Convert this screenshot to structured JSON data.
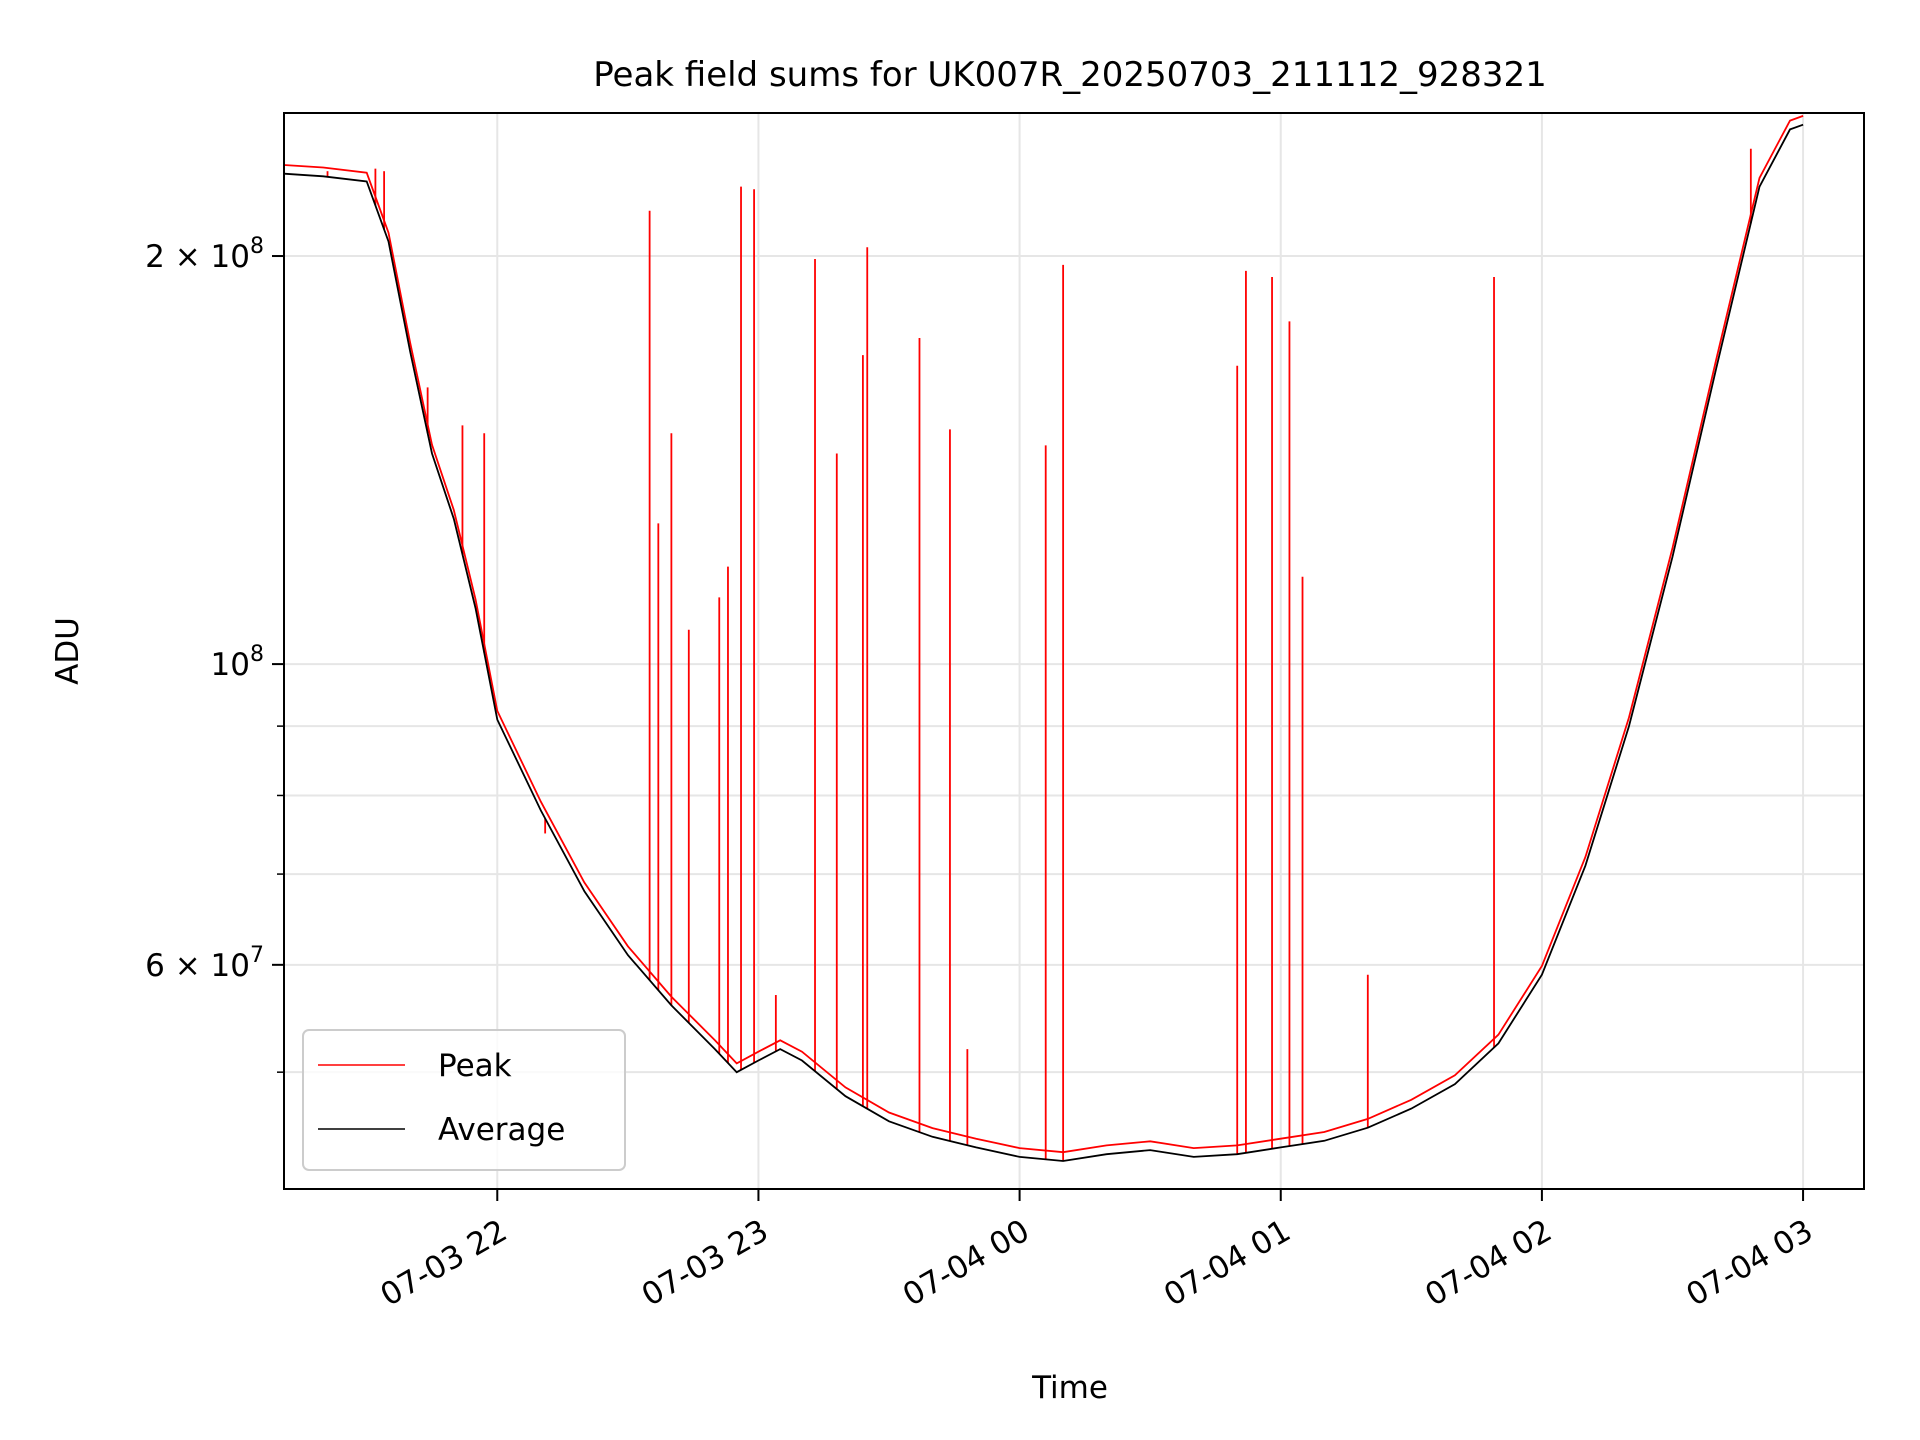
{
  "chart_data": {
    "type": "line",
    "title": "Peak field sums for UK007R_20250703_211112_928321",
    "xlabel": "Time",
    "ylabel": "ADU",
    "y_scale": "log",
    "ylim": [
      41000000,
      255000000
    ],
    "xlim": [
      "2025-07-03 21:11",
      "2025-07-04 03:14"
    ],
    "grid": true,
    "legend_position": "lower-left",
    "x_ticks": [
      {
        "value": "2025-07-03 22:00",
        "label": "07-03 22"
      },
      {
        "value": "2025-07-03 23:00",
        "label": "07-03 23"
      },
      {
        "value": "2025-07-04 00:00",
        "label": "07-04 00"
      },
      {
        "value": "2025-07-04 01:00",
        "label": "07-04 01"
      },
      {
        "value": "2025-07-04 02:00",
        "label": "07-04 02"
      },
      {
        "value": "2025-07-04 03:00",
        "label": "07-04 03"
      }
    ],
    "y_major_ticks": [
      {
        "value": 100000000,
        "base": "10",
        "exp": "8"
      },
      {
        "value": 200000000,
        "coef": "2",
        "base": "10",
        "exp": "8"
      },
      {
        "value": 60000000,
        "coef": "6",
        "base": "10",
        "exp": "7"
      }
    ],
    "y_minor_ticks": [
      50000000,
      70000000,
      80000000,
      90000000
    ],
    "series": [
      {
        "name": "Average",
        "color": "#000000",
        "points": [
          [
            "2025-07-03 21:11",
            230000000
          ],
          [
            "2025-07-03 21:20",
            229000000
          ],
          [
            "2025-07-03 21:30",
            227000000
          ],
          [
            "2025-07-03 21:35",
            205000000
          ],
          [
            "2025-07-03 21:40",
            170000000
          ],
          [
            "2025-07-03 21:45",
            143000000
          ],
          [
            "2025-07-03 21:50",
            128000000
          ],
          [
            "2025-07-03 21:55",
            110000000
          ],
          [
            "2025-07-03 22:00",
            91000000
          ],
          [
            "2025-07-03 22:10",
            78000000
          ],
          [
            "2025-07-03 22:20",
            68000000
          ],
          [
            "2025-07-03 22:30",
            61000000
          ],
          [
            "2025-07-03 22:40",
            56000000
          ],
          [
            "2025-07-03 22:50",
            52000000
          ],
          [
            "2025-07-03 22:55",
            50000000
          ],
          [
            "2025-07-03 23:00",
            51000000
          ],
          [
            "2025-07-03 23:05",
            52000000
          ],
          [
            "2025-07-03 23:10",
            51000000
          ],
          [
            "2025-07-03 23:20",
            48000000
          ],
          [
            "2025-07-03 23:30",
            46000000
          ],
          [
            "2025-07-03 23:40",
            44800000
          ],
          [
            "2025-07-03 23:50",
            44000000
          ],
          [
            "2025-07-04 00:00",
            43300000
          ],
          [
            "2025-07-04 00:10",
            43000000
          ],
          [
            "2025-07-04 00:20",
            43500000
          ],
          [
            "2025-07-04 00:30",
            43800000
          ],
          [
            "2025-07-04 00:40",
            43300000
          ],
          [
            "2025-07-04 00:50",
            43500000
          ],
          [
            "2025-07-04 01:00",
            44000000
          ],
          [
            "2025-07-04 01:10",
            44500000
          ],
          [
            "2025-07-04 01:20",
            45500000
          ],
          [
            "2025-07-04 01:30",
            47000000
          ],
          [
            "2025-07-04 01:40",
            49000000
          ],
          [
            "2025-07-04 01:50",
            52500000
          ],
          [
            "2025-07-04 02:00",
            59000000
          ],
          [
            "2025-07-04 02:10",
            71000000
          ],
          [
            "2025-07-04 02:20",
            90000000
          ],
          [
            "2025-07-04 02:30",
            120000000
          ],
          [
            "2025-07-04 02:40",
            165000000
          ],
          [
            "2025-07-04 02:50",
            225000000
          ],
          [
            "2025-07-04 02:57",
            248000000
          ],
          [
            "2025-07-04 03:00",
            250000000
          ]
        ]
      },
      {
        "name": "Peak",
        "color": "#ff0000",
        "spikes": [
          [
            "2025-07-03 21:21",
            231000000
          ],
          [
            "2025-07-03 21:32",
            232000000
          ],
          [
            "2025-07-03 21:34",
            231000000
          ],
          [
            "2025-07-03 21:44",
            160000000
          ],
          [
            "2025-07-03 21:52",
            150000000
          ],
          [
            "2025-07-03 21:57",
            148000000
          ],
          [
            "2025-07-03 22:11",
            75000000
          ],
          [
            "2025-07-03 22:35",
            216000000
          ],
          [
            "2025-07-03 22:37",
            127000000
          ],
          [
            "2025-07-03 22:40",
            148000000
          ],
          [
            "2025-07-03 22:44",
            106000000
          ],
          [
            "2025-07-03 22:51",
            112000000
          ],
          [
            "2025-07-03 22:53",
            118000000
          ],
          [
            "2025-07-03 22:56",
            225000000
          ],
          [
            "2025-07-03 22:59",
            224000000
          ],
          [
            "2025-07-03 23:04",
            57000000
          ],
          [
            "2025-07-03 23:13",
            199000000
          ],
          [
            "2025-07-03 23:18",
            143000000
          ],
          [
            "2025-07-03 23:24",
            169000000
          ],
          [
            "2025-07-03 23:25",
            203000000
          ],
          [
            "2025-07-03 23:37",
            174000000
          ],
          [
            "2025-07-03 23:44",
            149000000
          ],
          [
            "2025-07-03 23:48",
            52000000
          ],
          [
            "2025-07-04 00:06",
            145000000
          ],
          [
            "2025-07-04 00:10",
            197000000
          ],
          [
            "2025-07-04 00:50",
            166000000
          ],
          [
            "2025-07-04 00:52",
            195000000
          ],
          [
            "2025-07-04 00:58",
            193000000
          ],
          [
            "2025-07-04 01:02",
            179000000
          ],
          [
            "2025-07-04 01:05",
            116000000
          ],
          [
            "2025-07-04 01:20",
            59000000
          ],
          [
            "2025-07-04 01:49",
            193000000
          ],
          [
            "2025-07-04 02:48",
            240000000
          ]
        ]
      }
    ]
  }
}
